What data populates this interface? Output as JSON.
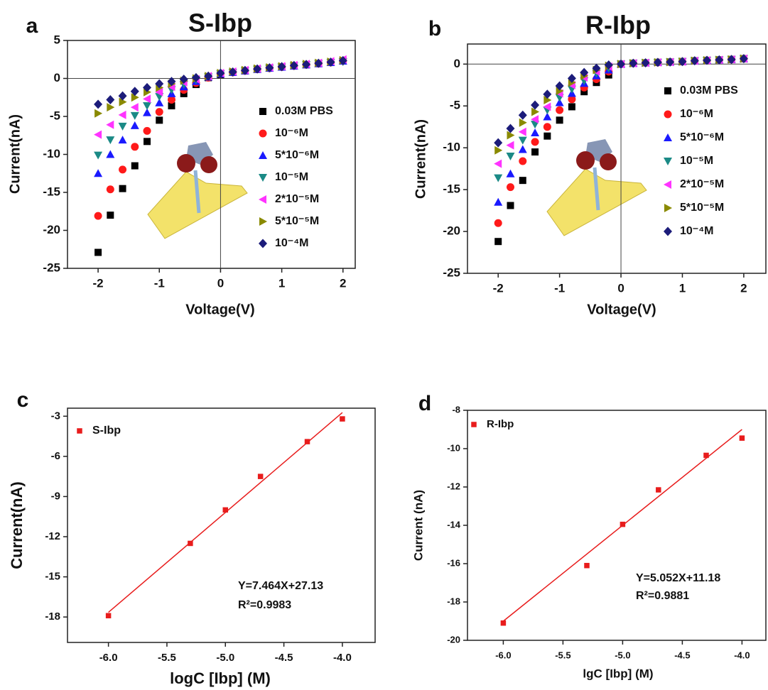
{
  "chart_data": [
    {
      "type": "scatter",
      "label": "a",
      "title": "S-Ibp",
      "x_label": "Voltage(V)",
      "y_label": "Current(nA)",
      "x": [
        -2,
        -1.8,
        -1.6,
        -1.4,
        -1.2,
        -1,
        -0.8,
        -0.6,
        -0.4,
        -0.2,
        0,
        0.2,
        0.4,
        0.6,
        0.8,
        1,
        1.2,
        1.4,
        1.6,
        1.8,
        2
      ],
      "xlim": [
        -2.5,
        2.2
      ],
      "ylim": [
        -25,
        5
      ],
      "xticks": [
        -2,
        -1,
        0,
        1,
        2
      ],
      "yticks": [
        -25,
        -20,
        -15,
        -10,
        -5,
        0,
        5
      ],
      "zero_lines": true,
      "series": [
        {
          "name": "0.03M PBS",
          "color": "#000000",
          "marker": "square",
          "values": [
            -22.9,
            -18,
            -14.5,
            -11.5,
            -8.3,
            -5.5,
            -3.6,
            -2,
            -0.8,
            0.1,
            0.5,
            0.8,
            1,
            1.2,
            1.35,
            1.5,
            1.65,
            1.8,
            1.95,
            2.1,
            2.3
          ]
        },
        {
          "name": "10⁻⁶M",
          "color": "#ff1a1a",
          "marker": "circle",
          "values": [
            -18.1,
            -14.6,
            -12,
            -9,
            -6.9,
            -4.4,
            -2.8,
            -1.5,
            -0.6,
            0.1,
            0.6,
            0.8,
            1,
            1.2,
            1.35,
            1.5,
            1.65,
            1.8,
            1.95,
            2.1,
            2.3
          ]
        },
        {
          "name": "5*10⁻⁶M",
          "color": "#1a1aff",
          "marker": "tri-up",
          "values": [
            -12.5,
            -10,
            -8.1,
            -6.2,
            -4.5,
            -3.2,
            -2,
            -1.1,
            -0.4,
            0.2,
            0.6,
            0.8,
            1,
            1.2,
            1.35,
            1.5,
            1.65,
            1.8,
            1.95,
            2.1,
            2.3
          ]
        },
        {
          "name": "10⁻⁵M",
          "color": "#1b8a86",
          "marker": "tri-down",
          "values": [
            -10.1,
            -8.1,
            -6.3,
            -4.9,
            -3.6,
            -2.4,
            -1.5,
            -0.8,
            -0.2,
            0.2,
            0.6,
            0.8,
            1,
            1.2,
            1.35,
            1.5,
            1.65,
            1.8,
            1.95,
            2.1,
            2.2
          ]
        },
        {
          "name": "2*10⁻⁵M",
          "color": "#ff33ff",
          "marker": "tri-left",
          "values": [
            -7.4,
            -6.1,
            -4.8,
            -3.8,
            -2.7,
            -1.8,
            -1.1,
            -0.5,
            -0.1,
            0.3,
            0.7,
            0.9,
            1.1,
            1.3,
            1.45,
            1.6,
            1.75,
            1.9,
            2.05,
            2.25,
            2.5
          ]
        },
        {
          "name": "5*10⁻⁵M",
          "color": "#8a8a00",
          "marker": "tri-right",
          "values": [
            -4.6,
            -3.8,
            -3.1,
            -2.5,
            -1.8,
            -1.2,
            -0.7,
            -0.3,
            0,
            0.3,
            0.7,
            0.9,
            1.1,
            1.3,
            1.45,
            1.6,
            1.75,
            1.9,
            2.05,
            2.2,
            2.4
          ]
        },
        {
          "name": "10⁻⁴M",
          "color": "#1c1c7a",
          "marker": "diamond",
          "values": [
            -3.4,
            -2.8,
            -2.3,
            -1.7,
            -1.2,
            -0.7,
            -0.4,
            -0.1,
            0.1,
            0.3,
            0.7,
            0.85,
            1.05,
            1.25,
            1.4,
            1.55,
            1.7,
            1.85,
            2,
            2.15,
            2.35
          ]
        }
      ]
    },
    {
      "type": "scatter",
      "label": "b",
      "title": "R-Ibp",
      "x_label": "Voltage(V)",
      "y_label": "Current(nA)",
      "x": [
        -2,
        -1.8,
        -1.6,
        -1.4,
        -1.2,
        -1,
        -0.8,
        -0.6,
        -0.4,
        -0.2,
        0,
        0.2,
        0.4,
        0.6,
        0.8,
        1,
        1.2,
        1.4,
        1.6,
        1.8,
        2
      ],
      "xlim": [
        -2.5,
        2.36
      ],
      "ylim": [
        -25,
        2.4
      ],
      "xticks": [
        -2,
        -1,
        0,
        1,
        2
      ],
      "yticks": [
        -25,
        -20,
        -15,
        -10,
        -5,
        0
      ],
      "zero_lines": true,
      "series": [
        {
          "name": "0.03M PBS",
          "color": "#000000",
          "marker": "square",
          "values": [
            -21.2,
            -16.9,
            -13.9,
            -10.5,
            -8.6,
            -6.7,
            -5.1,
            -3.3,
            -2.2,
            -1.3,
            0,
            0.1,
            0.15,
            0.2,
            0.25,
            0.3,
            0.4,
            0.45,
            0.5,
            0.55,
            0.65
          ]
        },
        {
          "name": "10⁻⁶M",
          "color": "#ff1a1a",
          "marker": "circle",
          "values": [
            -19,
            -14.7,
            -11.6,
            -9.3,
            -7.5,
            -5.5,
            -4.2,
            -2.8,
            -1.8,
            -0.9,
            0,
            0.1,
            0.15,
            0.2,
            0.25,
            0.3,
            0.4,
            0.45,
            0.5,
            0.55,
            0.65
          ]
        },
        {
          "name": "5*10⁻⁶M",
          "color": "#1a1aff",
          "marker": "tri-up",
          "values": [
            -16.5,
            -13.1,
            -10.2,
            -8.2,
            -6.3,
            -4.6,
            -3.5,
            -2.3,
            -1.4,
            -0.7,
            0,
            0.1,
            0.15,
            0.2,
            0.25,
            0.3,
            0.4,
            0.45,
            0.5,
            0.55,
            0.65
          ]
        },
        {
          "name": "10⁻⁵M",
          "color": "#1b8a86",
          "marker": "tri-down",
          "values": [
            -13.6,
            -11,
            -9.1,
            -7.2,
            -5.5,
            -4,
            -3,
            -2,
            -1.1,
            -0.5,
            0,
            0.1,
            0.15,
            0.2,
            0.25,
            0.3,
            0.4,
            0.45,
            0.5,
            0.55,
            0.65
          ]
        },
        {
          "name": "2*10⁻⁵M",
          "color": "#ff33ff",
          "marker": "tri-left",
          "values": [
            -11.9,
            -9.7,
            -8.1,
            -6.6,
            -5.1,
            -3.5,
            -2.5,
            -1.6,
            -0.9,
            -0.3,
            0,
            0.1,
            0.15,
            0.2,
            0.25,
            0.3,
            0.4,
            0.45,
            0.5,
            0.55,
            0.65
          ]
        },
        {
          "name": "5*10⁻⁵M",
          "color": "#8a8a00",
          "marker": "tri-right",
          "values": [
            -10.3,
            -8.5,
            -7,
            -5.7,
            -4.3,
            -3.2,
            -2.2,
            -1.4,
            -0.7,
            -0.2,
            0,
            0.1,
            0.15,
            0.2,
            0.25,
            0.3,
            0.4,
            0.45,
            0.5,
            0.55,
            0.65
          ]
        },
        {
          "name": "10⁻⁴M",
          "color": "#1c1c7a",
          "marker": "diamond",
          "values": [
            -9.4,
            -7.7,
            -6.1,
            -4.9,
            -3.6,
            -2.6,
            -1.7,
            -1,
            -0.5,
            -0.1,
            0,
            0.1,
            0.15,
            0.2,
            0.25,
            0.3,
            0.4,
            0.45,
            0.5,
            0.55,
            0.65
          ]
        }
      ]
    },
    {
      "type": "scatter",
      "label": "c",
      "x_label": "logC [Ibp] (M)",
      "y_label": "Current(nA)",
      "x": [
        -6,
        -5.3,
        -5,
        -4.7,
        -4.3,
        -4
      ],
      "xlim": [
        -6.35,
        -3.72
      ],
      "ylim": [
        -19.9,
        -2.4
      ],
      "xticks": [
        {
          "value": -6,
          "label": "-6.0"
        },
        -5.5,
        {
          "value": -5,
          "label": "-5.0"
        },
        -4.5,
        {
          "value": -4,
          "label": "-4.0"
        }
      ],
      "yticks": [
        -18,
        -15,
        -12,
        -9,
        -6,
        -3
      ],
      "series": [
        {
          "name": "S-Ibp",
          "color": "#e81c1c",
          "marker": "square",
          "values": [
            -17.9,
            -12.5,
            -10,
            -7.5,
            -4.9,
            -3.2
          ]
        }
      ],
      "fit": {
        "x": [
          -6,
          -4
        ],
        "values": [
          -17.65,
          -2.73
        ],
        "color": "#e81c1c"
      },
      "annotations": [
        "Y=7.464X+27.13",
        "R²=0.9983"
      ]
    },
    {
      "type": "scatter",
      "label": "d",
      "x_label": "lgC [Ibp] (M)",
      "y_label": "Current (nA)",
      "x": [
        -6,
        -5.3,
        -5,
        -4.7,
        -4.3,
        -4
      ],
      "xlim": [
        -6.3,
        -3.8
      ],
      "ylim": [
        -20,
        -8
      ],
      "xticks": [
        {
          "value": -6,
          "label": "-6.0"
        },
        -5.5,
        {
          "value": -5,
          "label": "-5.0"
        },
        -4.5,
        {
          "value": -4,
          "label": "-4.0"
        }
      ],
      "yticks": [
        -20,
        -18,
        -16,
        -14,
        -12,
        -10,
        -8
      ],
      "series": [
        {
          "name": "R-Ibp",
          "color": "#e81c1c",
          "marker": "square",
          "values": [
            -19.1,
            -16.1,
            -13.95,
            -12.15,
            -10.35,
            -9.45
          ]
        }
      ],
      "fit": {
        "x": [
          -6,
          -4
        ],
        "values": [
          -19,
          -9
        ],
        "color": "#e81c1c"
      },
      "annotations": [
        "Y=5.052X+11.18",
        "R²=0.9881"
      ]
    }
  ]
}
